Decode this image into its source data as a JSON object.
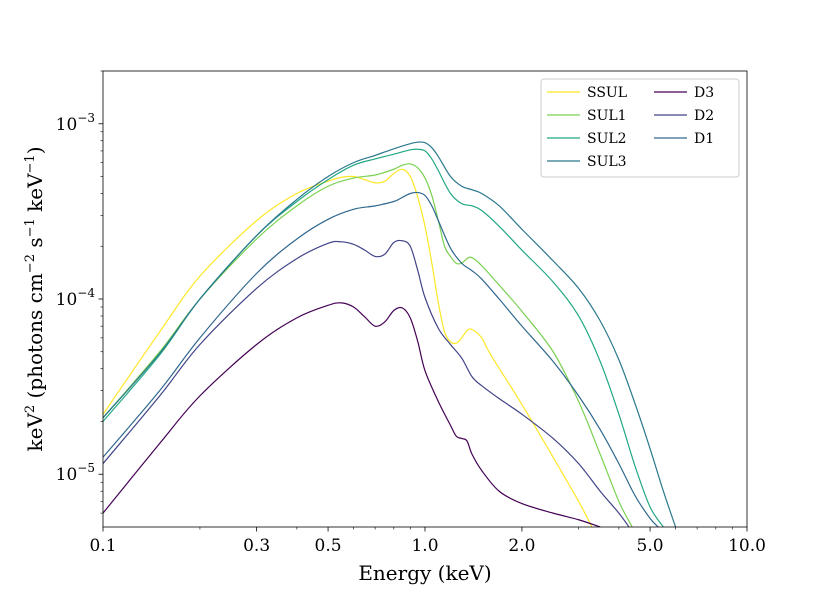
{
  "chart_data": {
    "type": "line",
    "title": "",
    "xlabel": "Energy (keV)",
    "ylabel": {
      "p1": "keV",
      "p2": "2",
      "p3": " (photons cm",
      "p4": "−2",
      "p5": " s",
      "p6": "−1",
      "p7": " keV",
      "p8": "−1",
      "p9": ")"
    },
    "xscale": "log",
    "yscale": "log",
    "xlim": [
      0.1,
      10.0
    ],
    "ylim": [
      5e-06,
      0.002
    ],
    "xticks": [
      {
        "value": 0.1,
        "label": "0.1"
      },
      {
        "value": 0.3,
        "label": "0.3"
      },
      {
        "value": 0.5,
        "label": "0.5"
      },
      {
        "value": 1.0,
        "label": "1.0"
      },
      {
        "value": 2.0,
        "label": "2.0"
      },
      {
        "value": 5.0,
        "label": "5.0"
      },
      {
        "value": 10.0,
        "label": "10.0"
      }
    ],
    "yticks": [
      {
        "value": 1e-05,
        "base": "10",
        "exp": "−5"
      },
      {
        "value": 0.0001,
        "base": "10",
        "exp": "−4"
      },
      {
        "value": 0.001,
        "base": "10",
        "exp": "−3"
      }
    ],
    "grid": false,
    "legend_position": "top-right",
    "series": [
      {
        "name": "SSUL",
        "color": "#fde725",
        "x": [
          0.1,
          0.15,
          0.2,
          0.3,
          0.4,
          0.5,
          0.55,
          0.6,
          0.65,
          0.7,
          0.75,
          0.8,
          0.85,
          0.9,
          0.95,
          1.0,
          1.05,
          1.1,
          1.15,
          1.2,
          1.25,
          1.3,
          1.35,
          1.4,
          1.5,
          1.6,
          2.0,
          2.5,
          3.0,
          3.3
        ],
        "y": [
          2.2e-05,
          6.5e-05,
          0.000135,
          0.00028,
          0.0004,
          0.00047,
          0.000495,
          0.0005,
          0.00048,
          0.00046,
          0.00047,
          0.00052,
          0.00055,
          0.0005,
          0.00038,
          0.00026,
          0.00016,
          9.5e-05,
          6.5e-05,
          5.7e-05,
          5.6e-05,
          6e-05,
          6.6e-05,
          6.7e-05,
          6e-05,
          4.8e-05,
          2.5e-05,
          1.25e-05,
          7e-06,
          5e-06
        ]
      },
      {
        "name": "SUL1",
        "color": "#7ad151",
        "x": [
          0.1,
          0.15,
          0.2,
          0.3,
          0.4,
          0.5,
          0.6,
          0.7,
          0.8,
          0.85,
          0.9,
          0.95,
          1.0,
          1.05,
          1.1,
          1.15,
          1.2,
          1.25,
          1.3,
          1.35,
          1.4,
          1.5,
          1.7,
          2.0,
          2.5,
          3.0,
          3.5,
          4.0,
          4.4
        ],
        "y": [
          2.1e-05,
          5e-05,
          0.0001,
          0.00022,
          0.00034,
          0.00044,
          0.00049,
          0.00051,
          0.00055,
          0.00058,
          0.00059,
          0.00056,
          0.00049,
          0.00039,
          0.00028,
          0.0002,
          0.000175,
          0.00016,
          0.00016,
          0.00017,
          0.000172,
          0.000155,
          0.00012,
          8.5e-05,
          5e-05,
          2.6e-05,
          1.3e-05,
          7e-06,
          5e-06
        ]
      },
      {
        "name": "SUL2",
        "color": "#22a884",
        "x": [
          0.1,
          0.15,
          0.2,
          0.3,
          0.4,
          0.5,
          0.6,
          0.7,
          0.8,
          0.9,
          0.95,
          1.0,
          1.05,
          1.1,
          1.2,
          1.3,
          1.4,
          1.5,
          1.7,
          2.0,
          2.5,
          3.0,
          3.5,
          4.0,
          4.5,
          5.0,
          5.5
        ],
        "y": [
          2e-05,
          4.8e-05,
          0.0001,
          0.00023,
          0.00036,
          0.00048,
          0.00058,
          0.00063,
          0.00067,
          0.00071,
          0.000715,
          0.0007,
          0.00063,
          0.00054,
          0.0004,
          0.00035,
          0.00034,
          0.00032,
          0.00026,
          0.00019,
          0.000125,
          8e-05,
          4.4e-05,
          2.2e-05,
          1.1e-05,
          6.5e-06,
          5e-06
        ]
      },
      {
        "name": "SUL3",
        "color": "#2a788e",
        "x": [
          0.1,
          0.15,
          0.2,
          0.3,
          0.4,
          0.5,
          0.6,
          0.7,
          0.8,
          0.9,
          0.95,
          1.0,
          1.05,
          1.1,
          1.2,
          1.3,
          1.4,
          1.5,
          1.7,
          2.0,
          2.5,
          3.0,
          3.5,
          4.0,
          4.5,
          5.0,
          5.5,
          6.0
        ],
        "y": [
          2.1e-05,
          4.9e-05,
          0.0001,
          0.00023,
          0.00037,
          0.0005,
          0.0006,
          0.00066,
          0.00072,
          0.00077,
          0.000785,
          0.00078,
          0.00073,
          0.00065,
          0.0005,
          0.00044,
          0.00042,
          0.0004,
          0.00034,
          0.00025,
          0.000165,
          0.000115,
          7.5e-05,
          4.5e-05,
          2.5e-05,
          1.4e-05,
          8e-06,
          5e-06
        ]
      },
      {
        "name": "D3",
        "color": "#440154",
        "x": [
          0.1,
          0.15,
          0.2,
          0.3,
          0.4,
          0.5,
          0.55,
          0.6,
          0.65,
          0.7,
          0.75,
          0.8,
          0.85,
          0.9,
          0.95,
          1.0,
          1.1,
          1.2,
          1.25,
          1.3,
          1.35,
          1.4,
          1.5,
          1.7,
          2.0,
          2.5,
          3.0,
          3.5
        ],
        "y": [
          6e-06,
          1.5e-05,
          2.8e-05,
          5.5e-05,
          7.8e-05,
          9.2e-05,
          9.5e-05,
          9e-05,
          7.9e-05,
          7e-05,
          7.4e-05,
          8.6e-05,
          8.9e-05,
          7.8e-05,
          5.7e-05,
          3.9e-05,
          2.6e-05,
          1.9e-05,
          1.65e-05,
          1.6e-05,
          1.55e-05,
          1.3e-05,
          1.05e-05,
          8e-06,
          6.8e-06,
          6e-06,
          5.5e-06,
          5e-06
        ]
      },
      {
        "name": "D2",
        "color": "#414487",
        "x": [
          0.1,
          0.15,
          0.2,
          0.3,
          0.4,
          0.5,
          0.55,
          0.6,
          0.65,
          0.7,
          0.75,
          0.8,
          0.85,
          0.9,
          0.95,
          1.0,
          1.1,
          1.2,
          1.3,
          1.4,
          1.5,
          1.7,
          2.0,
          2.5,
          3.0,
          3.5,
          4.0,
          4.3
        ],
        "y": [
          1.15e-05,
          2.8e-05,
          5.5e-05,
          0.000115,
          0.00017,
          0.000208,
          0.000212,
          0.000205,
          0.00019,
          0.000175,
          0.00018,
          0.00021,
          0.000215,
          0.0002,
          0.000145,
          0.000102,
          6.8e-05,
          5.5e-05,
          4.6e-05,
          3.6e-05,
          3.2e-05,
          2.7e-05,
          2.2e-05,
          1.6e-05,
          1.15e-05,
          8e-06,
          6e-06,
          5e-06
        ]
      },
      {
        "name": "D1",
        "color": "#30688e",
        "x": [
          0.1,
          0.15,
          0.2,
          0.3,
          0.4,
          0.5,
          0.6,
          0.7,
          0.8,
          0.85,
          0.9,
          0.95,
          1.0,
          1.05,
          1.1,
          1.2,
          1.3,
          1.4,
          1.5,
          1.7,
          2.0,
          2.5,
          3.0,
          3.5,
          4.0,
          4.5,
          5.0,
          5.3
        ],
        "y": [
          1.25e-05,
          3e-05,
          6e-05,
          0.00014,
          0.00022,
          0.000285,
          0.000325,
          0.00034,
          0.00036,
          0.00038,
          0.0004,
          0.000405,
          0.00039,
          0.00034,
          0.00028,
          0.000195,
          0.00016,
          0.000145,
          0.00013,
          0.0001,
          7e-05,
          4.4e-05,
          2.8e-05,
          1.8e-05,
          1.15e-05,
          7.5e-06,
          5.6e-06,
          5e-06
        ]
      }
    ],
    "legend_layout": {
      "column_1": [
        "SSUL",
        "SUL1",
        "SUL2",
        "SUL3"
      ],
      "column_2": [
        "D3",
        "D2",
        "D1"
      ]
    }
  }
}
